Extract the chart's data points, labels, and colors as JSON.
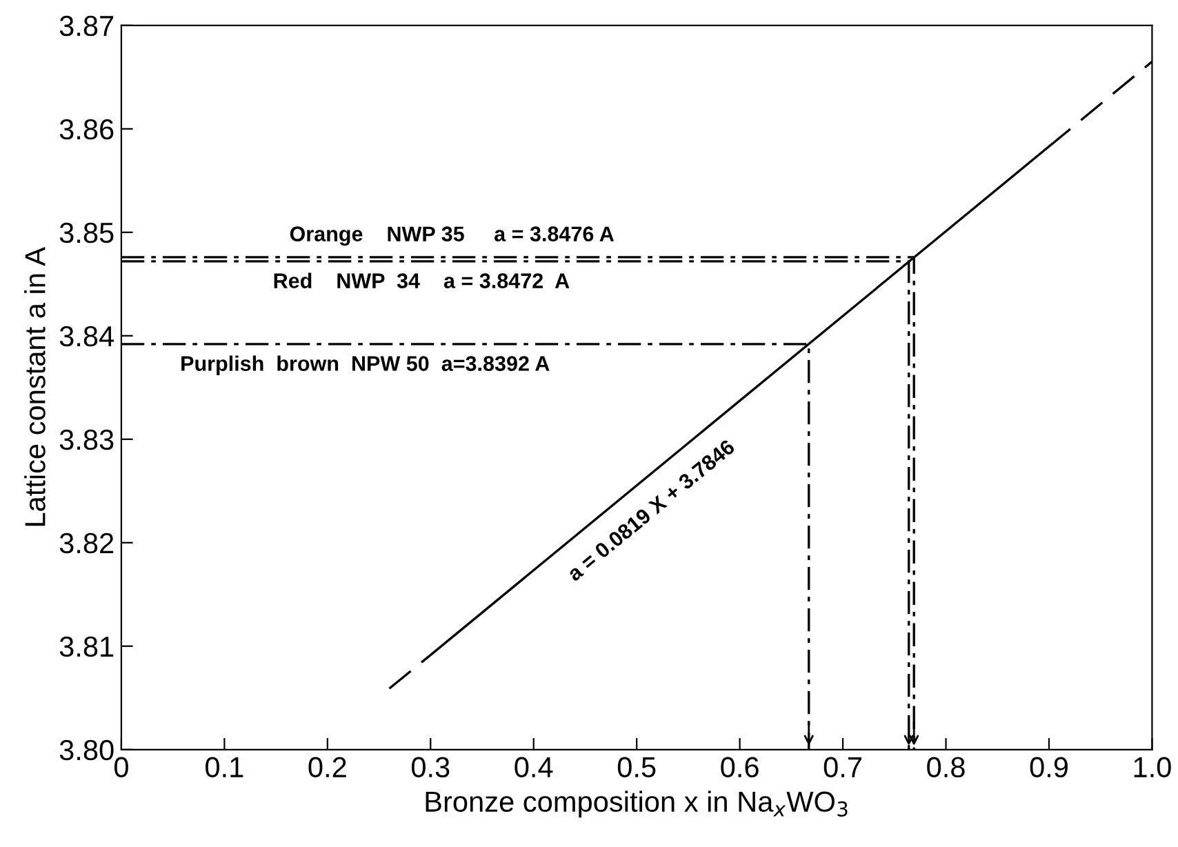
{
  "chart_data": {
    "type": "line",
    "xlabel": "Bronze composition x in Na$_{x}$WO$_{3}$",
    "ylabel": "Lattice constant a in A",
    "xlim": [
      0,
      1.0
    ],
    "ylim": [
      3.8,
      3.87
    ],
    "xticks": [
      {
        "value": 0,
        "label": "0"
      },
      0.1,
      0.2,
      0.3,
      0.4,
      0.5,
      0.6,
      0.7,
      0.8,
      0.9,
      {
        "value": 1.0,
        "label": "1.0"
      }
    ],
    "yticks": [
      {
        "value": 3.8,
        "label": "3.80"
      },
      3.81,
      3.82,
      3.83,
      3.84,
      3.85,
      3.86,
      {
        "value": 3.87,
        "label": "3.87"
      }
    ],
    "grid": false,
    "legend": false,
    "series": [
      {
        "color": "#000000",
        "line_style": "solid",
        "x": [
          0.297,
          0.9
        ],
        "values": [
          3.8089,
          3.8583
        ]
      },
      {
        "color": "#000000",
        "line_style": "dashed",
        "x": [
          0.26,
          0.297,
          0.5,
          0.9,
          1.0
        ],
        "values": [
          3.8059,
          3.8089,
          null,
          3.8583,
          3.8665
        ]
      },
      {
        "color": "#000000",
        "line_style": "dashed",
        "x": [
          0,
          0.769,
          0.769
        ],
        "values": [
          3.8476,
          3.8476,
          3.8
        ]
      },
      {
        "color": "#000000",
        "line_style": "dashed",
        "x": [
          0,
          0.764,
          0.764
        ],
        "values": [
          3.8472,
          3.8472,
          3.8
        ]
      },
      {
        "color": "#000000",
        "line_style": "dashed",
        "x": [
          0,
          0.667,
          0.667
        ],
        "values": [
          3.8392,
          3.8392,
          3.8
        ]
      }
    ],
    "annotations": [
      {
        "text": "Orange    NWP 35     a = 3.8476 A",
        "x": 0.163,
        "y": 3.8476
      },
      {
        "text": "Red    NWP  34    a = 3.8472  A",
        "x": 0.147,
        "y": 3.8472
      },
      {
        "text": "Purplish  brown  NPW 50  a=3.8392 A",
        "x": 0.057,
        "y": 3.8392
      },
      {
        "text": "a = 0.0819 X + 3.7846",
        "x": 0.5,
        "y": 3.8256
      }
    ]
  }
}
